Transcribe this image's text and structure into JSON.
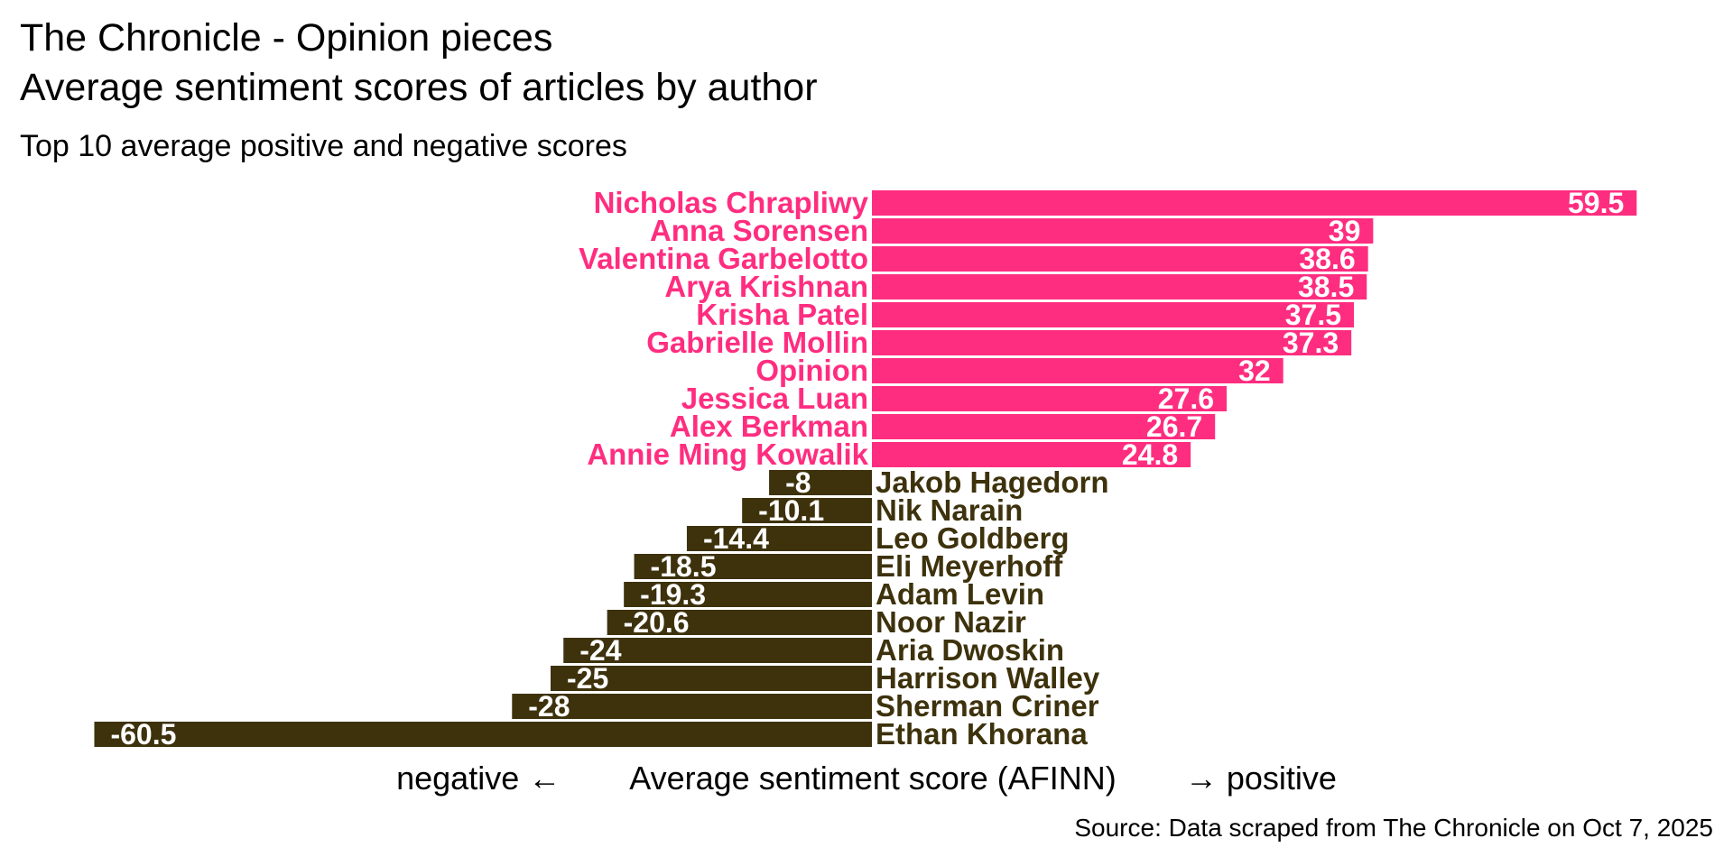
{
  "title_line1": "The Chronicle - Opinion pieces",
  "title_line2": "Average sentiment scores of articles by author",
  "subtitle": "Top 10 average positive and negative scores",
  "xlabel": {
    "left": "negative ←",
    "center": "Average sentiment score (AFINN)",
    "right": "→ positive"
  },
  "source": "Source: Data scraped from The Chronicle on Oct 7, 2025",
  "colors": {
    "positive": "#FF2D80",
    "negative": "#3D320C"
  },
  "chart_data": {
    "type": "bar",
    "orientation": "horizontal",
    "title": "The Chronicle - Opinion pieces / Average sentiment scores of articles by author",
    "subtitle": "Top 10 average positive and negative scores",
    "xlabel": "negative ← Average sentiment score (AFINN) → positive",
    "ylabel": "",
    "grid": false,
    "categories": [
      "Nicholas Chrapliwy",
      "Anna Sorensen",
      "Valentina Garbelotto",
      "Arya Krishnan",
      "Krisha Patel",
      "Gabrielle Mollin",
      "Opinion",
      "Jessica Luan",
      "Alex Berkman",
      "Annie Ming Kowalik",
      "Jakob Hagedorn",
      "Nik Narain",
      "Leo Goldberg",
      "Eli Meyerhoff",
      "Adam Levin",
      "Noor Nazir",
      "Aria Dwoskin",
      "Harrison Walley",
      "Sherman Criner",
      "Ethan Khorana"
    ],
    "values": [
      59.5,
      39,
      38.6,
      38.5,
      37.5,
      37.3,
      32,
      27.6,
      26.7,
      24.8,
      -8,
      -10.1,
      -14.4,
      -18.5,
      -19.3,
      -20.6,
      -24,
      -25,
      -28,
      -60.5
    ],
    "value_labels": [
      "59.5",
      "39",
      "38.6",
      "38.5",
      "37.5",
      "37.3",
      "32",
      "27.6",
      "26.7",
      "24.8",
      "-8",
      "-10.1",
      "-14.4",
      "-18.5",
      "-19.3",
      "-20.6",
      "-24",
      "-25",
      "-28",
      "-60.5"
    ],
    "xlim": [
      -62,
      62
    ]
  }
}
